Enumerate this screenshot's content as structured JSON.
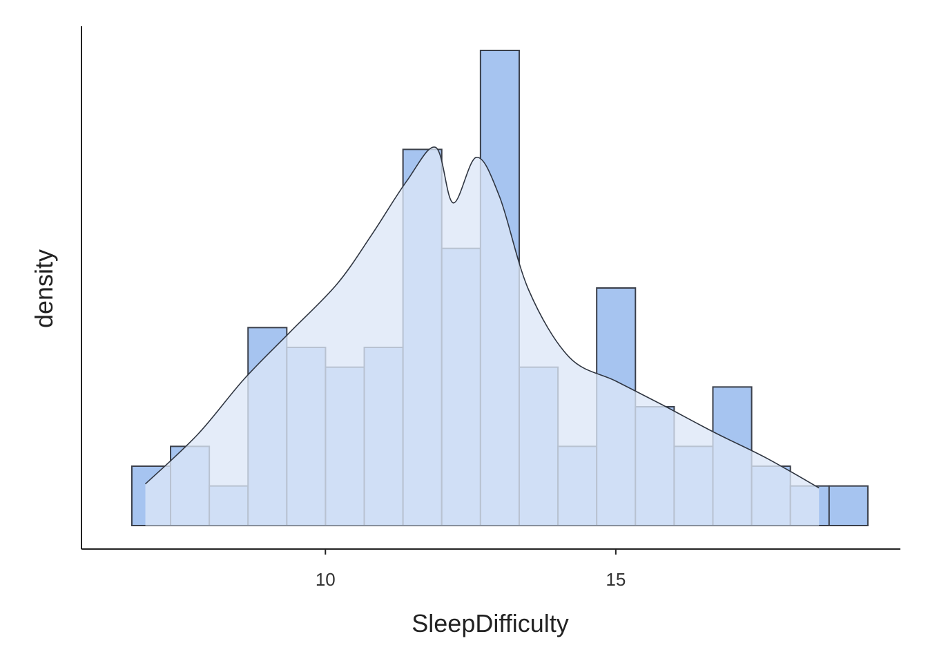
{
  "chart_data": {
    "type": "bar",
    "subtype": "histogram-with-density",
    "xlabel": "SleepDifficulty",
    "ylabel": "density",
    "xticks": [
      10,
      15
    ],
    "xlim": [
      5.8,
      19.9
    ],
    "ylim": [
      0,
      24
    ],
    "y_ticks_shown": false,
    "grid": false,
    "histogram": {
      "bin_width": 0.667,
      "bin_start": 6.667,
      "counts": [
        3,
        4,
        2,
        10,
        9,
        8,
        9,
        19,
        14,
        24,
        8,
        4,
        12,
        6,
        4,
        7,
        3,
        2,
        2
      ],
      "fill_color": "#A6C4F0",
      "stroke_color": "#3A3F4A"
    },
    "density_curve": {
      "x": [
        6.9,
        7.8,
        8.6,
        9.4,
        10.2,
        10.8,
        11.4,
        11.9,
        12.2,
        12.6,
        13.0,
        13.5,
        14.2,
        15.0,
        15.8,
        16.7,
        17.6,
        18.5
      ],
      "y": [
        2.1,
        4.6,
        7.4,
        9.8,
        12.2,
        14.7,
        17.4,
        19.1,
        16.3,
        18.6,
        16.6,
        11.9,
        8.5,
        7.3,
        6.1,
        4.7,
        3.4,
        1.9
      ],
      "fill_color": "#DCE7F7",
      "stroke_color": "#2F3540"
    },
    "axis_color": "#222222"
  }
}
